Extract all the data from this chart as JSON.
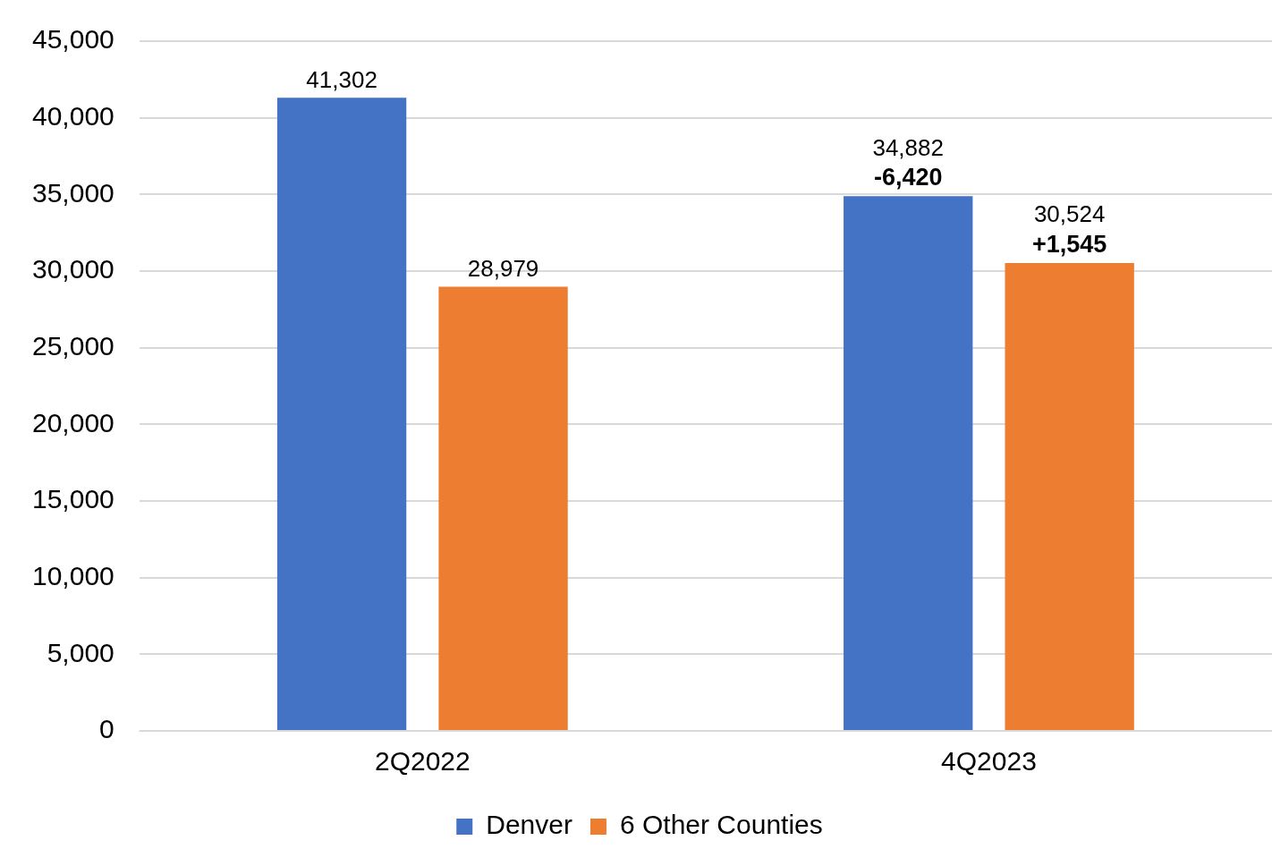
{
  "chart_data": {
    "type": "bar",
    "categories": [
      "2Q2022",
      "4Q2023"
    ],
    "series": [
      {
        "name": "Denver",
        "color": "#4472c4",
        "values": [
          41302,
          34882
        ],
        "value_labels": [
          "41,302",
          "34,882"
        ]
      },
      {
        "name": "6 Other Counties",
        "color": "#ed7d31",
        "values": [
          28979,
          30524
        ],
        "value_labels": [
          "28,979",
          "30,524"
        ]
      }
    ],
    "ylim": [
      0,
      45000
    ],
    "yticks": [
      0,
      {
        "value": 5000,
        "label": "5,000"
      },
      {
        "value": 10000,
        "label": "10,000"
      },
      {
        "value": 15000,
        "label": "15,000"
      },
      {
        "value": 20000,
        "label": "20,000"
      },
      {
        "value": 25000,
        "label": "25,000"
      },
      {
        "value": 30000,
        "label": "30,000"
      },
      {
        "value": 35000,
        "label": "35,000"
      },
      {
        "value": 40000,
        "label": "40,000"
      },
      {
        "value": 45000,
        "label": "45,000"
      }
    ],
    "grid": "y",
    "legend": "bottom",
    "annotations": [
      "-6,420",
      "+1,545"
    ]
  }
}
